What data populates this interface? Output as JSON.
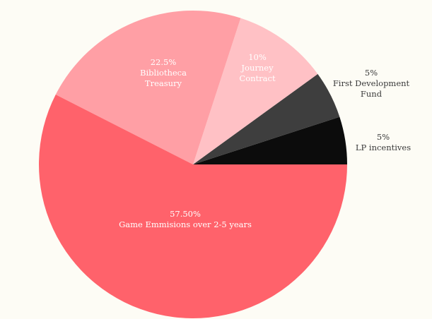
{
  "chart_data": {
    "type": "pie",
    "title": "",
    "start_angle_deg": 0,
    "direction": "counterclockwise",
    "slices": [
      {
        "name": "LP incentives",
        "pct_label": "5%",
        "value": 5,
        "color": "#0c0c0c",
        "label_position": "outside"
      },
      {
        "name": "First Development Fund",
        "name_lines": [
          "First Development",
          "Fund"
        ],
        "pct_label": "5%",
        "value": 5,
        "color": "#3e3e3e",
        "label_position": "outside"
      },
      {
        "name": "Journey Contract",
        "name_lines": [
          "Journey",
          "Contract"
        ],
        "pct_label": "10%",
        "value": 10,
        "color": "#ffc1c5",
        "label_position": "inside"
      },
      {
        "name": "Bibliotheca Treasury",
        "name_lines": [
          "Bibliotheca",
          "Treasury"
        ],
        "pct_label": "22.5%",
        "value": 22.5,
        "color": "#ff9fa5",
        "label_position": "inside"
      },
      {
        "name": "Game Emmisions over 2-5 years",
        "pct_label": "57.50%",
        "value": 57.5,
        "color": "#ff626b",
        "label_position": "inside"
      }
    ]
  }
}
